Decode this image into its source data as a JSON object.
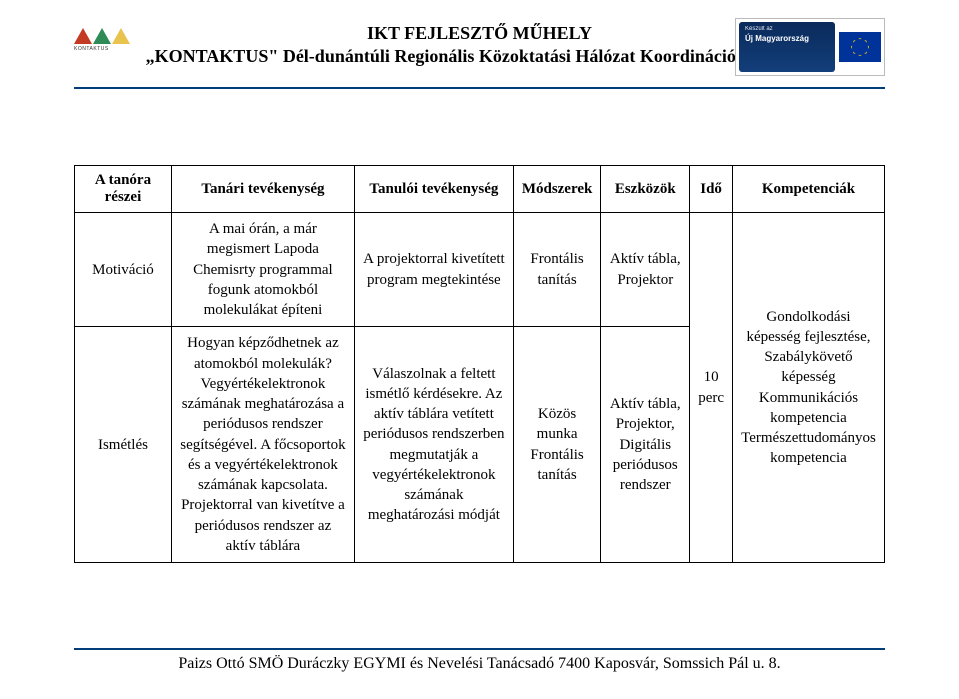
{
  "header": {
    "title": "IKT FEJLESZTŐ MŰHELY",
    "subtitle": "„KONTAKTUS\" Dél-dunántúli Regionális Közoktatási Hálózat Koordinációs Központ",
    "logo_left_label": "KONTAKTUS",
    "badge_small": "Készült az",
    "badge_big": "Új Magyarország"
  },
  "table": {
    "headers": [
      "A tanóra részei",
      "Tanári tevékenység",
      "Tanulói tevékenység",
      "Módszerek",
      "Eszközök",
      "Idő",
      "Kompetenciák"
    ],
    "rows": [
      {
        "c0": "Motiváció",
        "c1": "A mai órán, a már megismert Lapoda Chemisrty programmal fogunk atomokból molekulákat építeni",
        "c2": "A projektorral kivetített program megtekintése",
        "c3": "Frontális tanítás",
        "c4": "Aktív tábla, Projektor"
      },
      {
        "c0": "Ismétlés",
        "c1": "Hogyan képződhetnek az atomokból molekulák? Vegyértékelektronok számának meghatározása a periódusos rendszer segítségével. A főcsoportok és a vegyértékelektronok számának kapcsolata. Projektorral van kivetítve a periódusos rendszer az aktív táblára",
        "c2": "Válaszolnak a feltett ismétlő kérdésekre. Az aktív táblára vetített periódusos rendszerben megmutatják a vegyértékelektronok számának meghatározási módját",
        "c3": "Közös munka Frontális tanítás",
        "c4": "Aktív tábla, Projektor, Digitális periódusos rendszer"
      }
    ],
    "time_merged": "10 perc",
    "comp_merged": "Gondolkodási képesség fejlesztése, Szabálykövető képesség Kommunikációs kompetencia Természettudományos kompetencia"
  },
  "footer": "Paizs Ottó SMÖ Duráczky EGYMI és Nevelési Tanácsadó 7400 Kaposvár, Somssich Pál u. 8."
}
